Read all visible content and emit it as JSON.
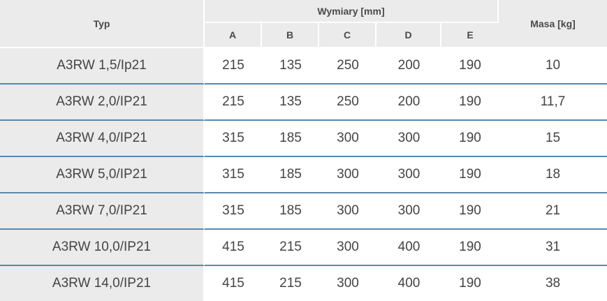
{
  "header": {
    "typ": "Typ",
    "wymiary": "Wymiary [mm]",
    "masa": "Masa [kg]",
    "dims": [
      "A",
      "B",
      "C",
      "D",
      "E"
    ]
  },
  "rows": [
    {
      "typ": "A3RW 1,5/Ip21",
      "a": "215",
      "b": "135",
      "c": "250",
      "d": "200",
      "e": "190",
      "masa": "10"
    },
    {
      "typ": "A3RW 2,0/IP21",
      "a": "215",
      "b": "135",
      "c": "250",
      "d": "200",
      "e": "190",
      "masa": "11,7"
    },
    {
      "typ": "A3RW 4,0/IP21",
      "a": "315",
      "b": "185",
      "c": "300",
      "d": "300",
      "e": "190",
      "masa": "15"
    },
    {
      "typ": "A3RW 5,0/IP21",
      "a": "315",
      "b": "185",
      "c": "300",
      "d": "300",
      "e": "190",
      "masa": "18"
    },
    {
      "typ": "A3RW 7,0/IP21",
      "a": "315",
      "b": "185",
      "c": "300",
      "d": "300",
      "e": "190",
      "masa": "21"
    },
    {
      "typ": "A3RW 10,0/IP21",
      "a": "415",
      "b": "215",
      "c": "300",
      "d": "400",
      "e": "190",
      "masa": "31"
    },
    {
      "typ": "A3RW 14,0/IP21",
      "a": "415",
      "b": "215",
      "c": "300",
      "d": "400",
      "e": "190",
      "masa": "38"
    }
  ],
  "colors": {
    "header_bg": "#ebebeb",
    "row_divider": "#5b87ad",
    "text": "#444444"
  }
}
